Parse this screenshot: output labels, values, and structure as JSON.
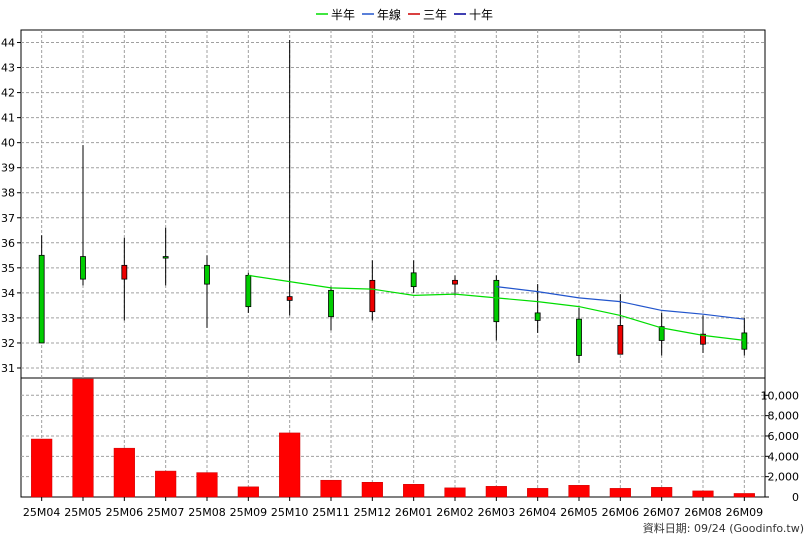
{
  "chart_data": {
    "type": "candlestick",
    "legend_position": "top-center",
    "colors": {
      "up_fill": "#00cc00",
      "down_fill": "#ee0000",
      "volume_bar": "#ff0000",
      "grid": "#a0a0a0",
      "ma_half_year": "#00dd00",
      "ma_year": "#2255cc",
      "ma_three_year": "#cc0000",
      "ma_ten_year": "#000099"
    },
    "legend": [
      {
        "key": "ma_half_year",
        "label": "半年"
      },
      {
        "key": "ma_year",
        "label": "年線"
      },
      {
        "key": "ma_three_year",
        "label": "三年"
      },
      {
        "key": "ma_ten_year",
        "label": "十年"
      }
    ],
    "categories": [
      "25M04",
      "25M05",
      "25M06",
      "25M07",
      "25M08",
      "25M09",
      "25M10",
      "25M11",
      "25M12",
      "26M01",
      "26M02",
      "26M03",
      "26M04",
      "26M05",
      "26M06",
      "26M07",
      "26M08",
      "26M09"
    ],
    "price_axis": {
      "ylim": [
        30.6,
        44.5
      ],
      "ticks": [
        31,
        32,
        33,
        34,
        35,
        36,
        37,
        38,
        39,
        40,
        41,
        42,
        43,
        44
      ]
    },
    "volume_axis": {
      "ylim": [
        0,
        11700
      ],
      "ticks": [
        0,
        2000,
        4000,
        6000,
        8000,
        10000
      ],
      "tick_labels": [
        "0",
        "2,000",
        "4,000",
        "6,000",
        "8,000",
        "10,000"
      ]
    },
    "candles": [
      {
        "o": 32.0,
        "h": 36.3,
        "l": 32.0,
        "c": 35.5
      },
      {
        "o": 34.55,
        "h": 39.9,
        "l": 34.3,
        "c": 35.45
      },
      {
        "o": 35.1,
        "h": 36.2,
        "l": 32.9,
        "c": 34.55
      },
      {
        "o": 35.45,
        "h": 36.6,
        "l": 34.3,
        "c": 35.45
      },
      {
        "o": 34.35,
        "h": 35.5,
        "l": 32.6,
        "c": 35.1
      },
      {
        "o": 33.45,
        "h": 34.8,
        "l": 33.2,
        "c": 34.7
      },
      {
        "o": 33.85,
        "h": 44.1,
        "l": 33.1,
        "c": 33.7
      },
      {
        "o": 33.05,
        "h": 34.25,
        "l": 32.5,
        "c": 34.1
      },
      {
        "o": 34.5,
        "h": 35.3,
        "l": 32.9,
        "c": 33.25
      },
      {
        "o": 34.25,
        "h": 35.3,
        "l": 34.0,
        "c": 34.8
      },
      {
        "o": 34.5,
        "h": 34.7,
        "l": 33.9,
        "c": 34.35
      },
      {
        "o": 32.85,
        "h": 34.7,
        "l": 32.1,
        "c": 34.5
      },
      {
        "o": 32.9,
        "h": 34.35,
        "l": 32.4,
        "c": 33.2
      },
      {
        "o": 31.5,
        "h": 33.4,
        "l": 31.2,
        "c": 32.95
      },
      {
        "o": 32.7,
        "h": 33.95,
        "l": 31.55,
        "c": 31.55
      },
      {
        "o": 32.1,
        "h": 33.2,
        "l": 31.5,
        "c": 32.65
      },
      {
        "o": 32.35,
        "h": 33.1,
        "l": 31.6,
        "c": 31.95
      },
      {
        "o": 31.75,
        "h": 33.0,
        "l": 31.5,
        "c": 32.4
      }
    ],
    "volume": [
      5700,
      11600,
      4800,
      2550,
      2400,
      1000,
      6300,
      1650,
      1450,
      1250,
      900,
      1050,
      850,
      1150,
      850,
      950,
      600,
      350
    ],
    "ma_half_year": [
      null,
      null,
      null,
      null,
      null,
      34.7,
      34.45,
      34.2,
      34.15,
      33.9,
      33.95,
      33.8,
      33.65,
      33.45,
      33.1,
      32.6,
      32.3,
      32.1
    ],
    "ma_year": [
      null,
      null,
      null,
      null,
      null,
      null,
      null,
      null,
      null,
      null,
      null,
      34.25,
      34.05,
      33.8,
      33.65,
      33.3,
      33.15,
      32.95
    ],
    "ma_three_year": [],
    "ma_ten_year": [],
    "source_note": "資料日期: 09/24 (Goodinfo.tw)"
  }
}
